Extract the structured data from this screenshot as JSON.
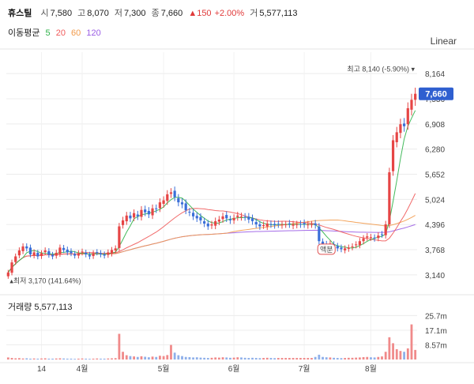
{
  "header": {
    "name": "휴스틸",
    "open_label": "시",
    "open": "7,580",
    "high_label": "고",
    "high": "8,070",
    "low_label": "저",
    "low": "7,300",
    "close_label": "종",
    "close": "7,660",
    "change": "▲150",
    "change_pct": "+2.00%",
    "volume_label": "거",
    "volume": "5,577,113"
  },
  "moving_average": {
    "label": "이동평균",
    "periods": [
      {
        "period": "5",
        "color": "#2fb24a"
      },
      {
        "period": "20",
        "color": "#f05a5a"
      },
      {
        "period": "60",
        "color": "#f29a4a"
      },
      {
        "period": "120",
        "color": "#9b5de5"
      }
    ]
  },
  "scale_label": "Linear",
  "colors": {
    "up": "#e64545",
    "down": "#3a6fd8",
    "grid": "#ececec",
    "current_badge": "#2f5fd0"
  },
  "chart_data": {
    "type": "candlestick",
    "y_axis_ticks": [
      "8,164",
      "7,536",
      "6,908",
      "6,280",
      "5,652",
      "5,024",
      "4,396",
      "3,768",
      "3,140"
    ],
    "ylim": [
      2900,
      8700
    ],
    "x_axis_ticks": [
      "14",
      "4월",
      "5월",
      "6월",
      "7월",
      "8월"
    ],
    "current_price": "7,660",
    "annotations": {
      "max_label": "최고 8,140 (-5.90%)",
      "min_label": "최저 3,170 (141.64%)",
      "event_label": "액분"
    },
    "volume": {
      "title": "거래량",
      "value": "5,577,113",
      "y_axis_ticks": [
        "25.7m",
        "17.1m",
        "8.57m"
      ],
      "ylim": [
        0,
        30
      ]
    },
    "close_series": [
      3200,
      3450,
      3600,
      3750,
      3850,
      3800,
      3650,
      3700,
      3600,
      3680,
      3750,
      3640,
      3600,
      3690,
      3820,
      3760,
      3700,
      3680,
      3620,
      3680,
      3720,
      3650,
      3600,
      3680,
      3700,
      3650,
      3620,
      3700,
      3760,
      3800,
      4350,
      4500,
      4620,
      4550,
      4680,
      4600,
      4760,
      4700,
      4650,
      4800,
      4780,
      4950,
      5000,
      5150,
      5200,
      5080,
      4950,
      4900,
      4750,
      4700,
      4600,
      4550,
      4500,
      4420,
      4350,
      4400,
      4480,
      4520,
      4600,
      4550,
      4500,
      4560,
      4620,
      4600,
      4580,
      4520,
      4480,
      4400,
      4350,
      4380,
      4420,
      4400,
      4380,
      4400,
      4400,
      4400,
      4400,
      4400,
      4400,
      4400,
      4400,
      4400,
      4400,
      4380,
      3980,
      3900,
      3850,
      3920,
      3860,
      3800,
      3780,
      3800,
      3820,
      3850,
      3900,
      3980,
      4050,
      4100,
      4080,
      4050,
      4120,
      4150,
      4400,
      5700,
      6500,
      6700,
      6900,
      6850,
      7300,
      7510,
      7660
    ],
    "volume_series": [
      1.2,
      0.9,
      0.7,
      0.8,
      0.6,
      0.7,
      0.5,
      0.6,
      0.5,
      0.6,
      0.7,
      0.5,
      0.5,
      0.6,
      0.7,
      0.6,
      0.5,
      0.5,
      0.4,
      0.5,
      0.6,
      0.5,
      0.4,
      0.5,
      0.6,
      0.5,
      0.5,
      0.6,
      0.7,
      0.8,
      15.0,
      4.5,
      2.5,
      2.0,
      1.8,
      1.5,
      1.9,
      1.6,
      1.3,
      1.7,
      1.5,
      2.2,
      2.0,
      2.6,
      8.5,
      4.0,
      2.5,
      2.0,
      1.5,
      1.4,
      1.2,
      1.3,
      1.1,
      1.0,
      0.9,
      1.0,
      1.2,
      1.1,
      1.3,
      1.2,
      1.0,
      1.1,
      1.3,
      1.2,
      1.0,
      0.9,
      1.0,
      0.9,
      0.8,
      0.9,
      1.0,
      0.9,
      0.8,
      0.9,
      0.9,
      0.9,
      0.9,
      0.9,
      0.9,
      0.9,
      0.9,
      0.9,
      0.9,
      1.5,
      2.8,
      1.5,
      1.3,
      1.2,
      1.0,
      0.9,
      0.8,
      0.9,
      1.0,
      1.0,
      1.1,
      1.2,
      1.4,
      1.5,
      1.3,
      1.2,
      1.5,
      1.8,
      4.5,
      13.0,
      9.5,
      6.0,
      5.0,
      4.5,
      6.5,
      20.5,
      5.6
    ]
  }
}
